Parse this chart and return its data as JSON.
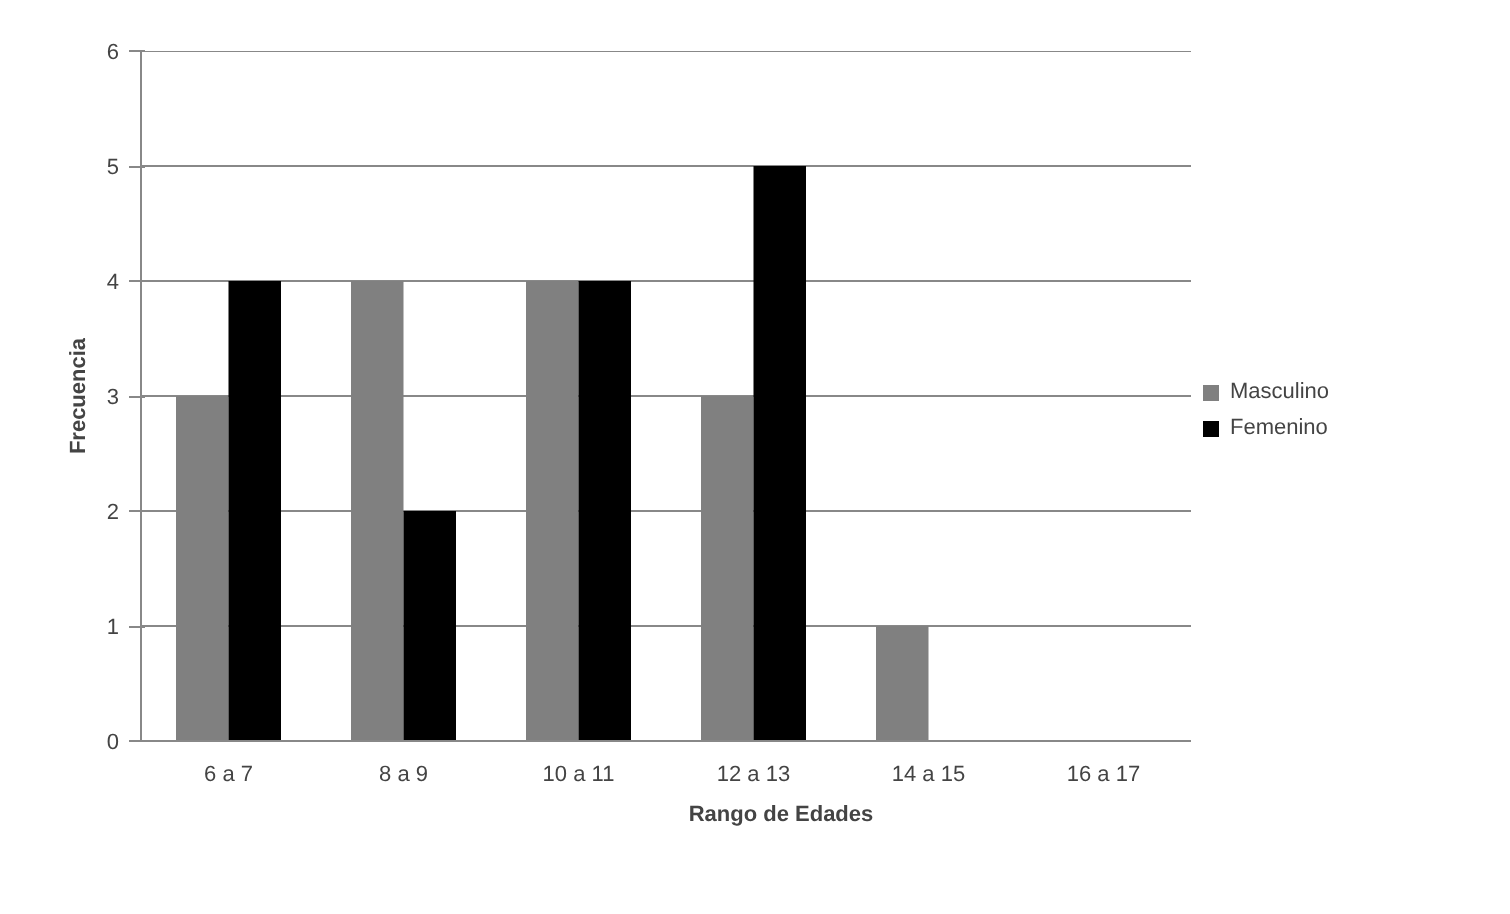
{
  "chart_data": {
    "type": "bar",
    "xlabel": "Rango de Edades",
    "ylabel": "Frecuencia",
    "categories": [
      "6 a 7",
      "8 a 9",
      "10 a 11",
      "12 a 13",
      "14 a 15",
      "16 a 17"
    ],
    "series": [
      {
        "name": "Masculino",
        "color": "#808080",
        "values": [
          3,
          4,
          4,
          3,
          1,
          0
        ]
      },
      {
        "name": "Femenino",
        "color": "#000000",
        "values": [
          4,
          2,
          4,
          5,
          0,
          0
        ]
      }
    ],
    "ylim": [
      0,
      6
    ],
    "yticks": [
      0,
      1,
      2,
      3,
      4,
      5,
      6
    ],
    "grid": "y",
    "legend": "right"
  }
}
